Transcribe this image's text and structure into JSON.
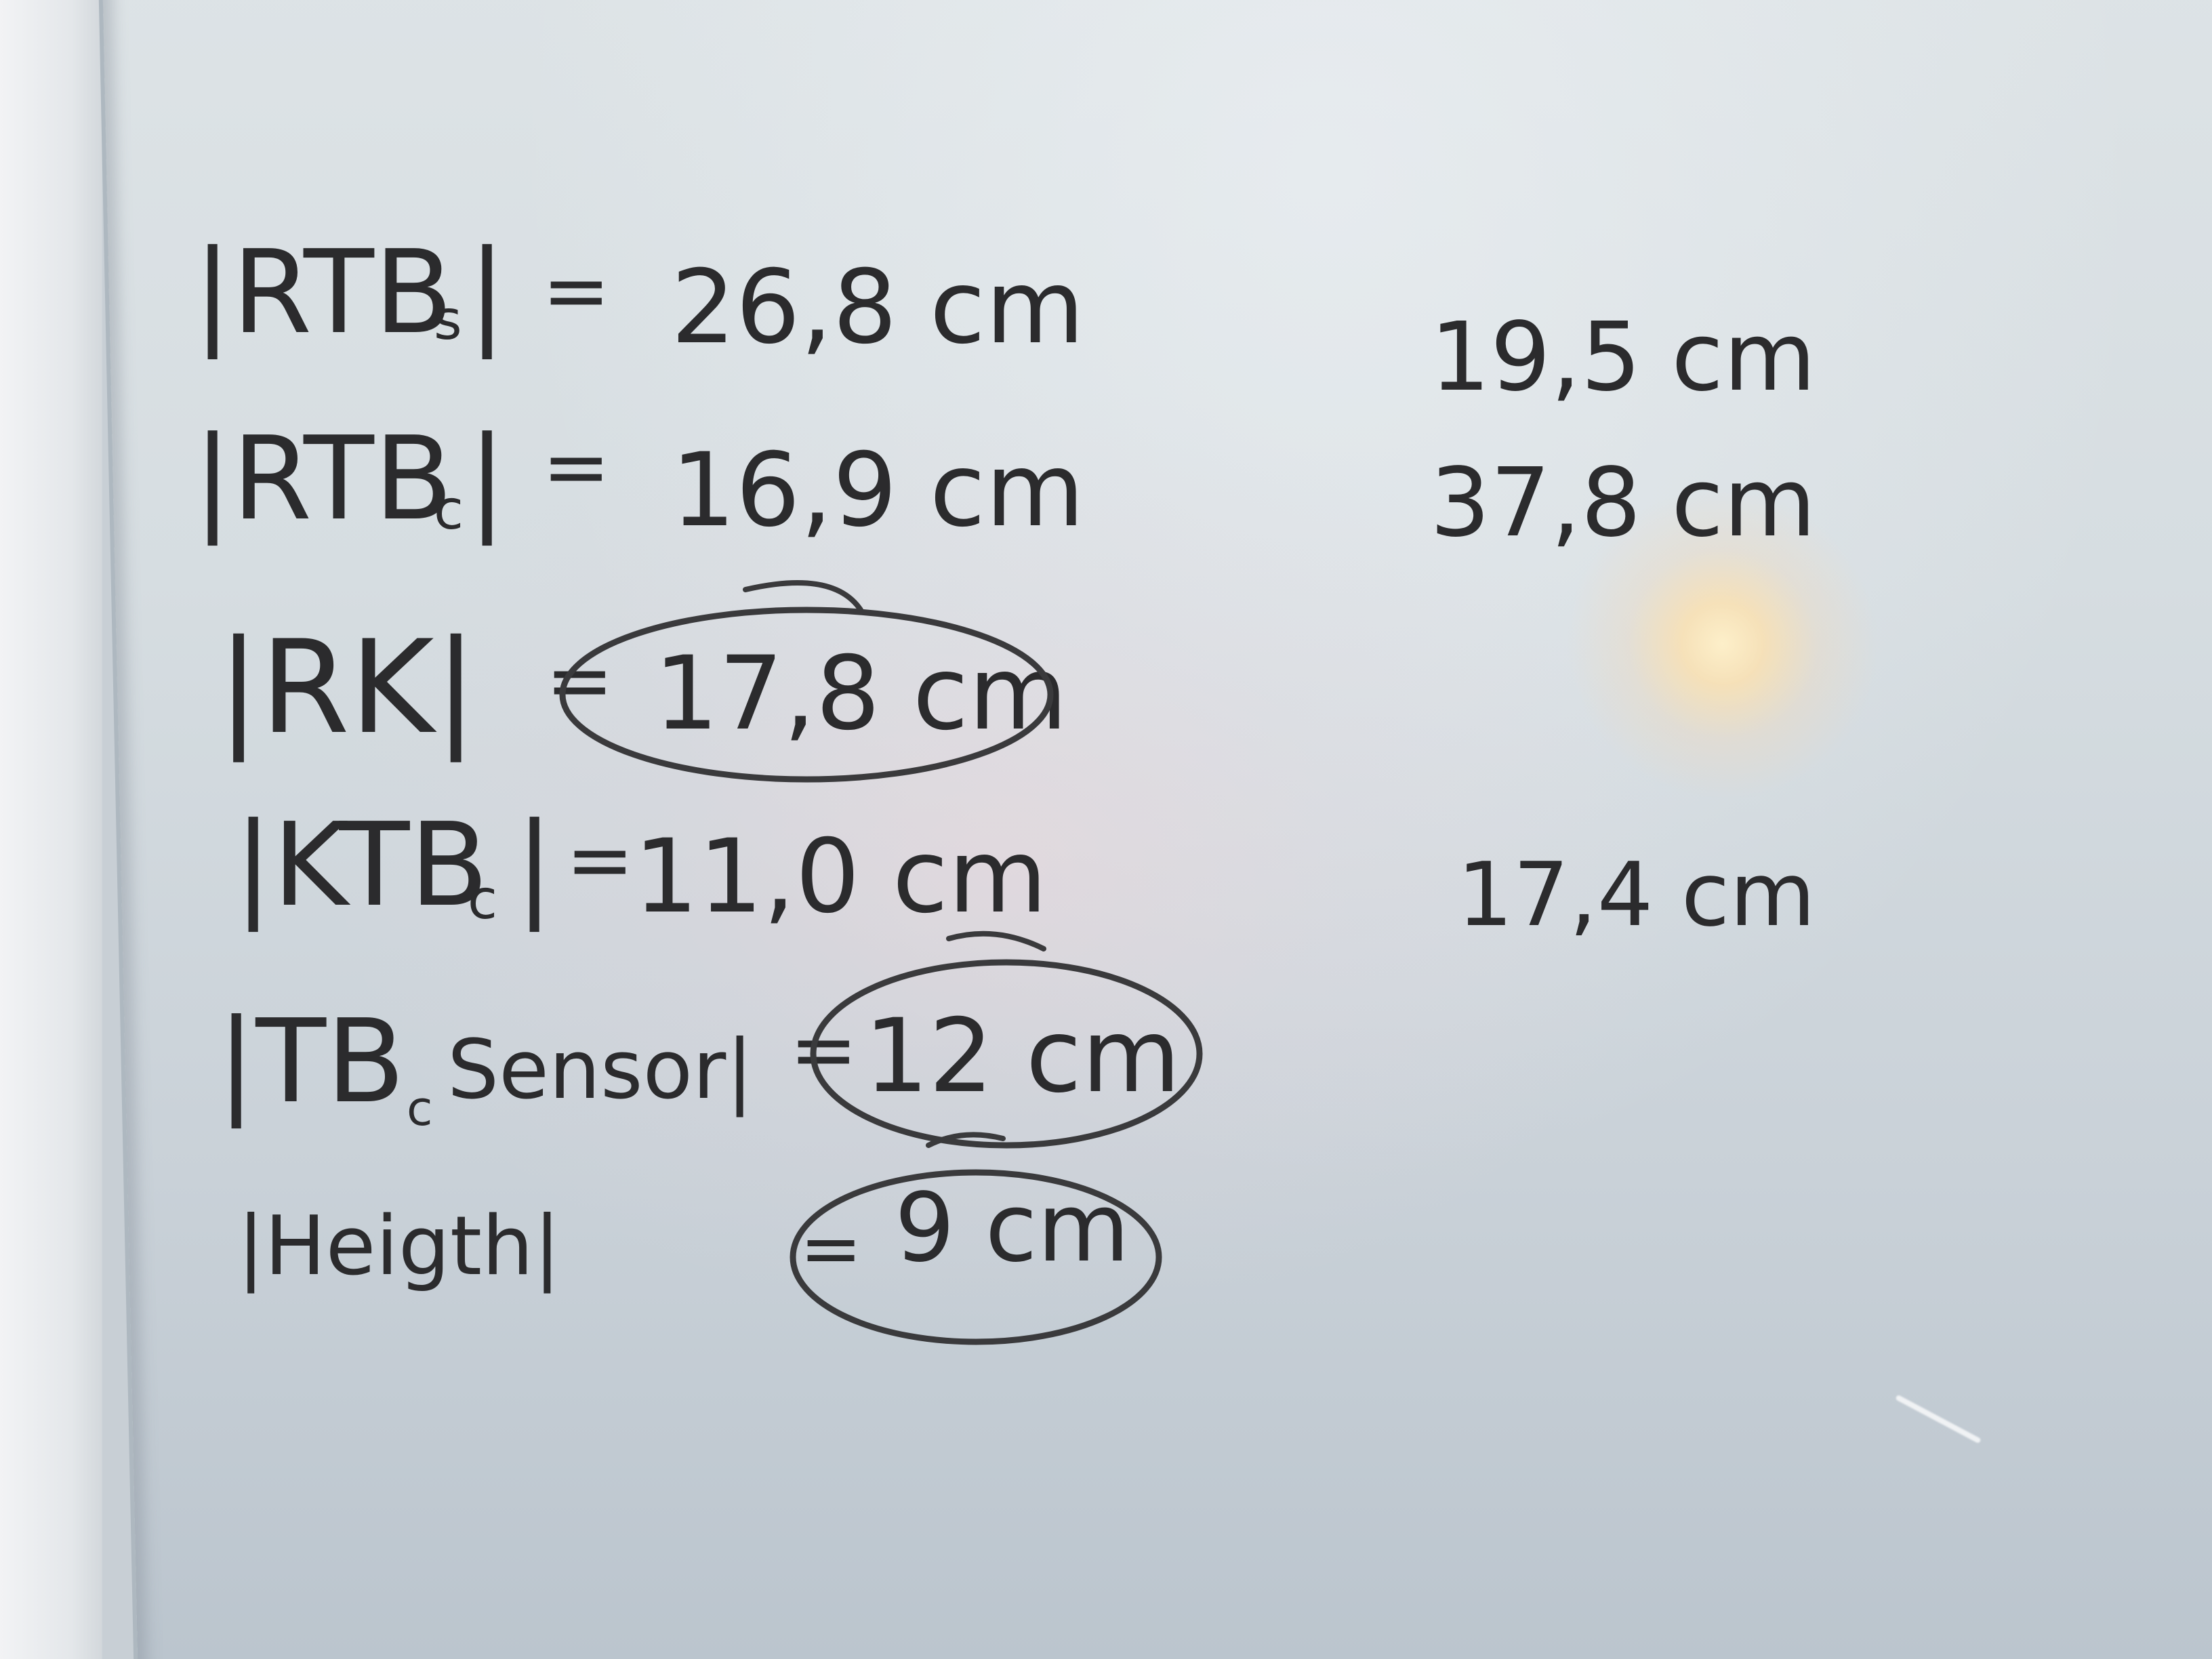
{
  "whiteboard": {
    "left_column": [
      {
        "label": "|RTB",
        "sub": "s",
        "close": "|",
        "eq": "=",
        "value": "26,8 cm"
      },
      {
        "label": "|RTB",
        "sub": "c",
        "close": "|",
        "eq": "=",
        "value": "16,9 cm"
      },
      {
        "label": "|RK|",
        "sub": "",
        "close": "",
        "eq": "=",
        "value": "17,8 cm"
      },
      {
        "label": "|KTB",
        "sub": "c",
        "close": "|",
        "eq": "=",
        "value": "11,0 cm"
      },
      {
        "label": "|TB",
        "sub": "c",
        "close": "Sensor|",
        "eq": "=",
        "value": "12 cm"
      },
      {
        "label": "|Heigth|",
        "sub": "",
        "close": "",
        "eq": "=",
        "value": "9 cm"
      }
    ],
    "right_column": [
      "19,5 cm",
      "37,8 cm",
      "17,4 cm"
    ]
  }
}
